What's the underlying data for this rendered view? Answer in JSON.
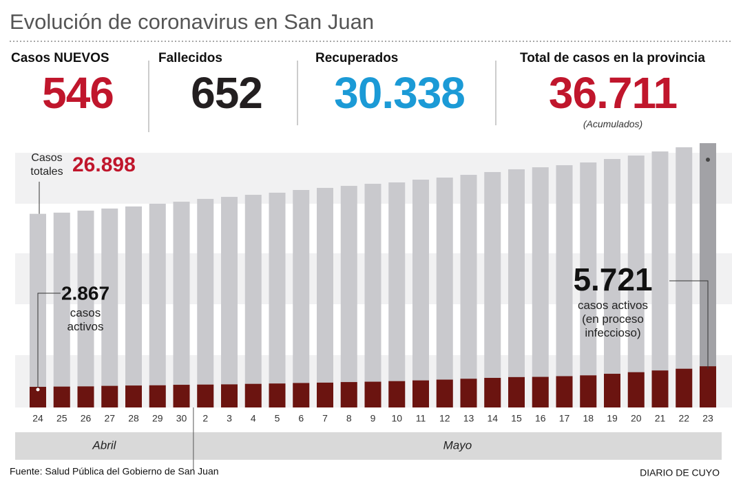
{
  "header": {
    "title": "Evolución de coronavirus en San Juan",
    "stats": [
      {
        "label": "Casos NUEVOS",
        "value": "546",
        "color": "#c0162c"
      },
      {
        "label": "Fallecidos",
        "value": "652",
        "color": "#231f20"
      },
      {
        "label": "Recuperados",
        "value": "30.338",
        "color": "#1b9ad6"
      },
      {
        "label": "Total de casos en la provincia",
        "value": "36.711",
        "note": "(Acumulados)",
        "color": "#c0162c"
      }
    ]
  },
  "chart_data": {
    "type": "bar",
    "categories": [
      "24",
      "25",
      "26",
      "27",
      "28",
      "29",
      "30",
      "2",
      "3",
      "4",
      "5",
      "6",
      "7",
      "8",
      "9",
      "10",
      "11",
      "12",
      "13",
      "14",
      "15",
      "16",
      "17",
      "18",
      "19",
      "20",
      "21",
      "22",
      "23"
    ],
    "groups": [
      "Abril",
      "Mayo"
    ],
    "highlight_color": "#a2a2a6",
    "series": [
      {
        "name": "Casos totales",
        "color": "#c9c9cd",
        "values": [
          26898,
          27060,
          27340,
          27630,
          27920,
          28300,
          28580,
          28970,
          29250,
          29540,
          29830,
          30210,
          30500,
          30780,
          31070,
          31260,
          31640,
          31930,
          32310,
          32700,
          33080,
          33360,
          33650,
          34030,
          34510,
          34990,
          35560,
          36140,
          36711
        ],
        "value_labels": [
          "26.898",
          null,
          null,
          null,
          null,
          null,
          null,
          null,
          null,
          null,
          null,
          null,
          null,
          null,
          null,
          null,
          null,
          null,
          null,
          null,
          null,
          null,
          null,
          null,
          null,
          null,
          null,
          null,
          null
        ]
      },
      {
        "name": "casos activos",
        "color": "#6b1410",
        "values": [
          2867,
          2900,
          2930,
          3000,
          3050,
          3080,
          3150,
          3180,
          3210,
          3280,
          3330,
          3400,
          3450,
          3530,
          3580,
          3660,
          3760,
          3870,
          3990,
          4110,
          4220,
          4250,
          4350,
          4460,
          4680,
          4900,
          5140,
          5380,
          5721
        ],
        "value_labels": [
          "2.867",
          null,
          null,
          null,
          null,
          null,
          null,
          null,
          null,
          null,
          null,
          null,
          null,
          null,
          null,
          null,
          null,
          null,
          null,
          null,
          null,
          null,
          null,
          null,
          null,
          null,
          null,
          null,
          "5.721"
        ]
      }
    ],
    "annotation": "(en proceso infeccioso)"
  },
  "source": "Fuente: Salud Pública del Gobierno de San Juan",
  "brand": "DIARIO DE CUYO"
}
